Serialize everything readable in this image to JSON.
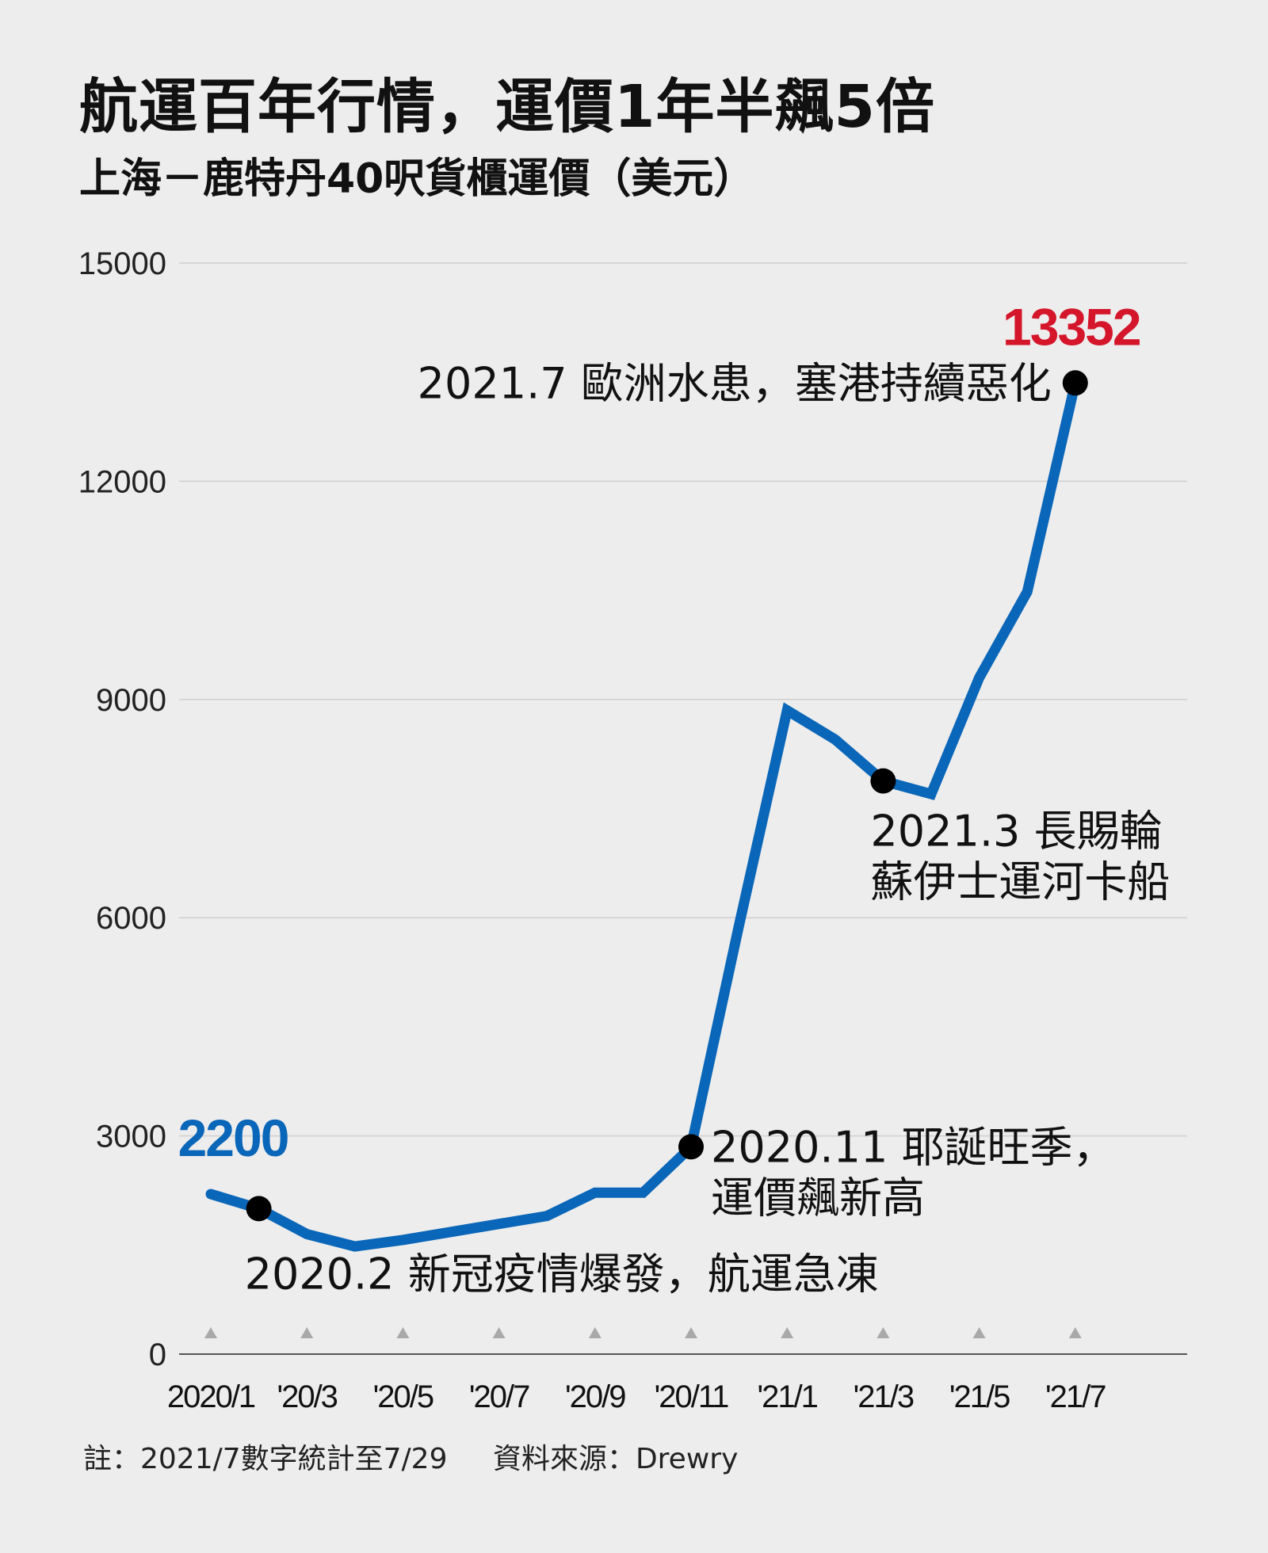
{
  "title": "航運百年行情，運價1年半飆5倍",
  "subtitle": "上海－鹿特丹40呎貨櫃運價（美元）",
  "note": {
    "text": "註：2021/7數字統計至7/29",
    "source": "資料來源：Drewry"
  },
  "colors": {
    "line": "#0a66b8",
    "start_label": "#0a66b8",
    "end_label": "#d4152a",
    "grid": "#cfcfcf",
    "tick_marker": "#a9a9a9"
  },
  "chart_data": {
    "type": "line",
    "title": "航運百年行情，運價1年半飆5倍",
    "subtitle": "上海－鹿特丹40呎貨櫃運價（美元）",
    "ylabel": "",
    "xlabel": "",
    "ylim": [
      0,
      15000
    ],
    "y_ticks": [
      "0",
      "3000",
      "6000",
      "9000",
      "12000",
      "15000"
    ],
    "grid": true,
    "x_ticks": [
      {
        "label": "2020/1",
        "x": "2020-01"
      },
      {
        "label": "'20/3",
        "x": "2020-03"
      },
      {
        "label": "'20/5",
        "x": "2020-05"
      },
      {
        "label": "'20/7",
        "x": "2020-07"
      },
      {
        "label": "'20/9",
        "x": "2020-09"
      },
      {
        "label": "'20/11",
        "x": "2020-11"
      },
      {
        "label": "'21/1",
        "x": "2021-01"
      },
      {
        "label": "'21/3",
        "x": "2021-03"
      },
      {
        "label": "'21/5",
        "x": "2021-05"
      },
      {
        "label": "'21/7",
        "x": "2021-07"
      }
    ],
    "series": [
      {
        "points": [
          {
            "x": "2020-01",
            "y": 2200
          },
          {
            "x": "2020-02",
            "y": 2000
          },
          {
            "x": "2020-03",
            "y": 1650
          },
          {
            "x": "2020-04",
            "y": 1480
          },
          {
            "x": "2020-05",
            "y": 1570
          },
          {
            "x": "2020-06",
            "y": 1680
          },
          {
            "x": "2020-07",
            "y": 1790
          },
          {
            "x": "2020-08",
            "y": 1900
          },
          {
            "x": "2020-09",
            "y": 2220
          },
          {
            "x": "2020-10",
            "y": 2220
          },
          {
            "x": "2020-11",
            "y": 2850
          },
          {
            "x": "2020-12",
            "y": 5900
          },
          {
            "x": "2021-01",
            "y": 8850
          },
          {
            "x": "2021-02",
            "y": 8450
          },
          {
            "x": "2021-03",
            "y": 7880
          },
          {
            "x": "2021-04",
            "y": 7700
          },
          {
            "x": "2021-05",
            "y": 9300
          },
          {
            "x": "2021-06",
            "y": 10480
          },
          {
            "x": "2021-07",
            "y": 13352
          }
        ]
      }
    ],
    "value_labels": [
      {
        "text": "2200",
        "x": "2020-01",
        "y": 2200
      },
      {
        "text": "13352",
        "x": "2021-07",
        "y": 13352
      }
    ],
    "annotations": [
      {
        "x": "2020-02",
        "y": 2000,
        "lines": [
          "2020.2 新冠疫情爆發，航運急凍"
        ]
      },
      {
        "x": "2020-11",
        "y": 2850,
        "lines": [
          "2020.11 耶誕旺季，",
          "運價飆新高"
        ]
      },
      {
        "x": "2021-03",
        "y": 7880,
        "lines": [
          "2021.3  長賜輪",
          "蘇伊士運河卡船"
        ]
      },
      {
        "x": "2021-07",
        "y": 13352,
        "lines": [
          "2021.7 歐洲水患，塞港持續惡化"
        ]
      }
    ]
  }
}
